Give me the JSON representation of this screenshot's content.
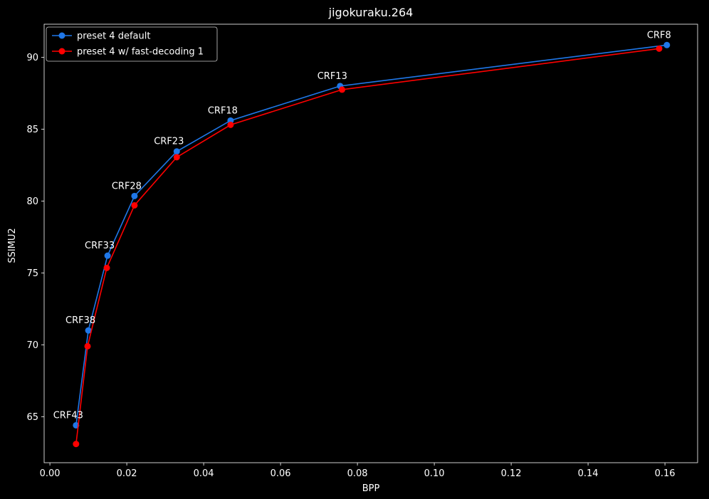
{
  "chart_data": {
    "type": "line",
    "title": "jigokuraku.264",
    "xlabel": "BPP",
    "ylabel": "SSIMU2",
    "xlim": [
      -0.0015,
      0.1685
    ],
    "ylim": [
      61.8,
      92.3
    ],
    "xticks": [
      0.0,
      0.02,
      0.04,
      0.06,
      0.08,
      0.1,
      0.12,
      0.14,
      0.16
    ],
    "xtick_labels": [
      "0.00",
      "0.02",
      "0.04",
      "0.06",
      "0.08",
      "0.10",
      "0.12",
      "0.14",
      "0.16"
    ],
    "yticks": [
      65,
      70,
      75,
      80,
      85,
      90
    ],
    "ytick_labels": [
      "65",
      "70",
      "75",
      "80",
      "85",
      "90"
    ],
    "grid": false,
    "legend_position": "top-left",
    "series": [
      {
        "name": "preset 4 default",
        "color": "#1f77e8",
        "points": [
          {
            "x": 0.0068,
            "y": 64.4
          },
          {
            "x": 0.01,
            "y": 71.0
          },
          {
            "x": 0.015,
            "y": 76.2
          },
          {
            "x": 0.022,
            "y": 80.35
          },
          {
            "x": 0.033,
            "y": 83.45
          },
          {
            "x": 0.047,
            "y": 85.6
          },
          {
            "x": 0.0755,
            "y": 88.0
          },
          {
            "x": 0.1605,
            "y": 90.85
          }
        ]
      },
      {
        "name": "preset 4 w/ fast-decoding 1",
        "color": "#ff0000",
        "points": [
          {
            "x": 0.0068,
            "y": 63.1
          },
          {
            "x": 0.0098,
            "y": 69.9
          },
          {
            "x": 0.0148,
            "y": 75.35
          },
          {
            "x": 0.022,
            "y": 79.7
          },
          {
            "x": 0.033,
            "y": 83.05
          },
          {
            "x": 0.047,
            "y": 85.3
          },
          {
            "x": 0.076,
            "y": 87.75
          },
          {
            "x": 0.1585,
            "y": 90.6
          }
        ]
      }
    ],
    "annotations": [
      {
        "text": "CRF43",
        "x": 0.0068,
        "y": 64.4
      },
      {
        "text": "CRF38",
        "x": 0.01,
        "y": 71.0
      },
      {
        "text": "CRF33",
        "x": 0.015,
        "y": 76.2
      },
      {
        "text": "CRF28",
        "x": 0.022,
        "y": 80.35
      },
      {
        "text": "CRF23",
        "x": 0.033,
        "y": 83.45
      },
      {
        "text": "CRF18",
        "x": 0.047,
        "y": 85.6
      },
      {
        "text": "CRF13",
        "x": 0.0755,
        "y": 88.0
      },
      {
        "text": "CRF8",
        "x": 0.1605,
        "y": 90.85
      }
    ]
  }
}
